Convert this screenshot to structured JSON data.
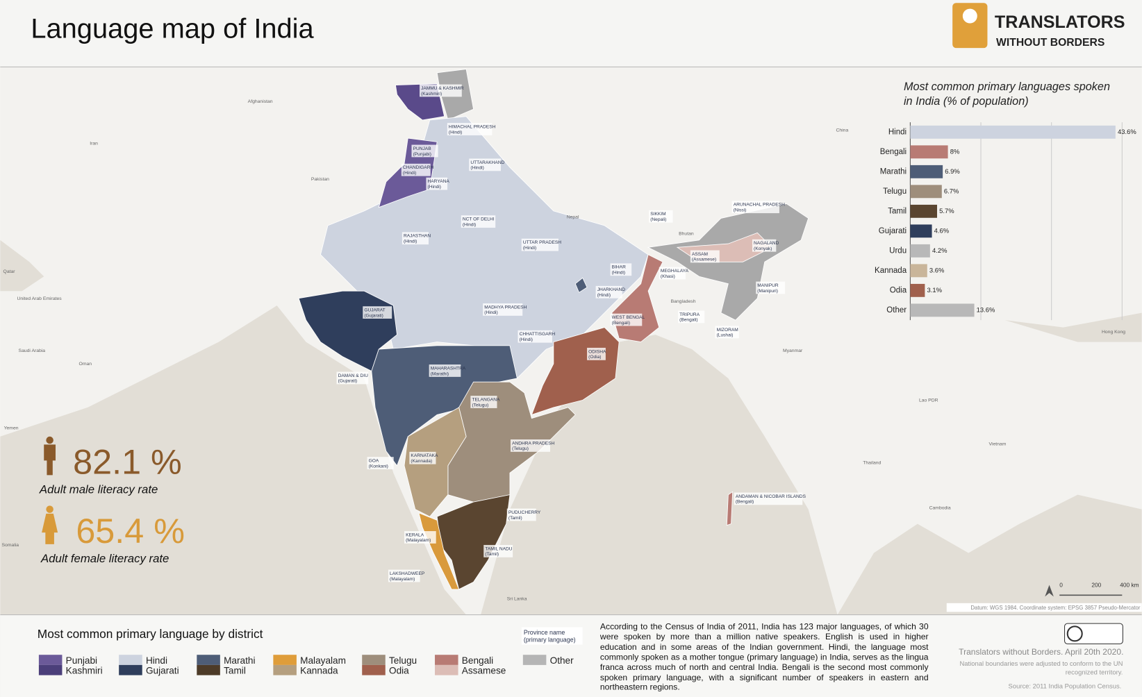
{
  "header": {
    "title": "Language map of India",
    "logo_line1": "TRANSLATORS",
    "logo_line2": "WITHOUT BORDERS"
  },
  "chart_data": {
    "type": "bar",
    "orientation": "horizontal",
    "title": "Most common primary languages spoken in India (% of population)",
    "categories": [
      "Hindi",
      "Bengali",
      "Marathi",
      "Telugu",
      "Tamil",
      "Gujarati",
      "Urdu",
      "Kannada",
      "Odia",
      "Other"
    ],
    "values": [
      43.6,
      8,
      6.9,
      6.7,
      5.7,
      4.6,
      4.2,
      3.6,
      3.1,
      13.6
    ],
    "value_labels": [
      "43.6%",
      "8%",
      "6.9%",
      "6.7%",
      "5.7%",
      "4.6%",
      "4.2%",
      "3.6%",
      "3.1%",
      "13.6%"
    ],
    "colors": [
      "#cdd3df",
      "#b87b74",
      "#4e5d77",
      "#9e8e7c",
      "#5a4530",
      "#2f3e5c",
      "#b8b8b8",
      "#c9b59a",
      "#a0604d",
      "#b8b8b8"
    ],
    "xlim": [
      0,
      45
    ],
    "xticks": [
      0,
      15,
      30,
      45
    ],
    "grid": true
  },
  "stats": [
    {
      "value": "82.1 %",
      "label": "Adult male literacy rate"
    },
    {
      "value": "65.4 %",
      "label": "Adult female literacy rate"
    }
  ],
  "regions": [
    {
      "name": "JAMMU & KASHMIR",
      "language": "(Kashmiri)"
    },
    {
      "name": "HIMACHAL PRADESH",
      "language": "(Hindi)"
    },
    {
      "name": "PUNJAB",
      "language": "(Punjabi)"
    },
    {
      "name": "UTTARAKHAND",
      "language": "(Hindi)"
    },
    {
      "name": "CHANDIGARH",
      "language": "(Hindi)"
    },
    {
      "name": "HARYANA",
      "language": "(Hindi)"
    },
    {
      "name": "NCT OF DELHI",
      "language": "(Hindi)"
    },
    {
      "name": "RAJASTHAN",
      "language": "(Hindi)"
    },
    {
      "name": "UTTAR PRADESH",
      "language": "(Hindi)"
    },
    {
      "name": "SIKKIM",
      "language": "(Nepali)"
    },
    {
      "name": "ARUNACHAL PRADESH",
      "language": "(Nissi)"
    },
    {
      "name": "NAGALAND",
      "language": "(Konyak)"
    },
    {
      "name": "ASSAM",
      "language": "(Assamese)"
    },
    {
      "name": "BIHAR",
      "language": "(Hindi)"
    },
    {
      "name": "MEGHALAYA",
      "language": "(Khasi)"
    },
    {
      "name": "MANIPUR",
      "language": "(Manipuri)"
    },
    {
      "name": "JHARKHAND",
      "language": "(Hindi)"
    },
    {
      "name": "GUJARAT",
      "language": "(Gujarati)"
    },
    {
      "name": "MADHYA PRADESH",
      "language": "(Hindi)"
    },
    {
      "name": "WEST BENGAL",
      "language": "(Bengali)"
    },
    {
      "name": "TRIPURA",
      "language": "(Bengali)"
    },
    {
      "name": "MIZORAM",
      "language": "(Lushai)"
    },
    {
      "name": "CHHATTISGARH",
      "language": "(Hindi)"
    },
    {
      "name": "ODISHA",
      "language": "(Odia)"
    },
    {
      "name": "DAMAN & DIU",
      "language": "(Gujarati)"
    },
    {
      "name": "MAHARASHTRA",
      "language": "(Marathi)"
    },
    {
      "name": "TELANGANA",
      "language": "(Telugu)"
    },
    {
      "name": "ANDHRA PRADESH",
      "language": "(Telugu)"
    },
    {
      "name": "GOA",
      "language": "(Konkani)"
    },
    {
      "name": "KARNATAKA",
      "language": "(Kannada)"
    },
    {
      "name": "ANDAMAN & NICOBAR ISLANDS",
      "language": "(Bengali)"
    },
    {
      "name": "PUDUCHERRY",
      "language": "(Tamil)"
    },
    {
      "name": "KERALA",
      "language": "(Malayalam)"
    },
    {
      "name": "TAMIL NADU",
      "language": "(Tamil)"
    },
    {
      "name": "LAKSHADWEEP",
      "language": "(Malayalam)"
    }
  ],
  "countries": [
    "Afghanistan",
    "Iran",
    "Pakistan",
    "China",
    "Nepal",
    "Bhutan",
    "Bangladesh",
    "Myanmar",
    "Qatar",
    "United Arab Emirates",
    "Saudi Arabia",
    "Oman",
    "Yemen",
    "Somalia",
    "Sri Lanka",
    "Thailand",
    "Lao PDR",
    "Vietnam",
    "Cambodia",
    "Hong Kong"
  ],
  "legend": {
    "title": "Most common primary language by district",
    "province_note": "Province name (primary language)",
    "items": [
      {
        "names": [
          "Punjabi",
          "Kashmiri"
        ],
        "colors": [
          "#6b5a99",
          "#4b3f7a"
        ]
      },
      {
        "names": [
          "Hindi",
          "Gujarati"
        ],
        "colors": [
          "#cdd3df",
          "#2f3e5c"
        ]
      },
      {
        "names": [
          "Marathi",
          "Tamil"
        ],
        "colors": [
          "#4e5d77",
          "#4d3b28"
        ]
      },
      {
        "names": [
          "Malayalam",
          "Kannada"
        ],
        "colors": [
          "#df9d3a",
          "#b59f7f"
        ]
      },
      {
        "names": [
          "Telugu",
          "Odia"
        ],
        "colors": [
          "#9e8e7c",
          "#a0604d"
        ]
      },
      {
        "names": [
          "Bengali",
          "Assamese"
        ],
        "colors": [
          "#b87b74",
          "#dcbdb6"
        ]
      }
    ],
    "other": {
      "name": "Other",
      "color": "#b5b5b5"
    }
  },
  "description": "According to the Census of India of 2011, India has 123 major languages, of which 30 were spoken by more than a million native speakers. English is used in higher education and in some areas of the Indian government. Hindi, the language most commonly spoken as a mother tongue (primary language) in India, serves as the lingua franca across much of north and central India. Bengali is the second most commonly spoken primary language, with a significant number of speakers in eastern and northeastern regions.",
  "credits": {
    "author": "Translators without Borders. April 20th 2020.",
    "boundaries": "National boundaries were adjusted to conform to the UN recognized territory.",
    "source": "Source: 2011 India Population Census.",
    "datum": "Datum: WGS 1984. Coordinate system: EPSG 3857 Pseudo-Mercator"
  },
  "scale_bar": [
    "0",
    "200",
    "400 km"
  ]
}
